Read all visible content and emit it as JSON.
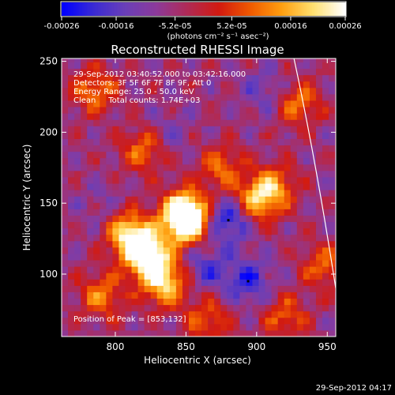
{
  "colorbar": {
    "tick_labels": [
      "-0.00026",
      "-0.00016",
      "-5.2e-05",
      "5.2e-05",
      "0.00016",
      "0.00026"
    ],
    "tick_values": [
      -0.00026,
      -0.00016,
      -5.2e-05,
      5.2e-05,
      0.00016,
      0.00026
    ],
    "range": [
      -0.00026,
      0.00026
    ],
    "units_label": "(photons cm⁻² s⁻¹ asec⁻²)",
    "colors": [
      "#0000ff",
      "#3a2bd4",
      "#6a3fb8",
      "#8c3a9a",
      "#b02a55",
      "#d21a10",
      "#f05a00",
      "#ff9f10",
      "#ffe070",
      "#ffffff"
    ]
  },
  "chart_data": {
    "type": "heatmap",
    "title": "Reconstructed RHESSI Image",
    "xlabel": "Heliocentric X (arcsec)",
    "ylabel": "Heliocentric Y (arcsec)",
    "xlim": [
      762,
      956
    ],
    "ylim": [
      56,
      252
    ],
    "xticks": [
      800,
      850,
      900,
      950
    ],
    "yticks": [
      100,
      150,
      200,
      250
    ],
    "annotations": [
      "29-Sep-2012 03:40:52.000 to 03:42:16.000",
      "Detectors: 3F 5F 6F 7F 8F 9F, Att 0",
      "Energy Range: 25.0 - 50.0 keV",
      "Clean     Total counts: 1.74E+03"
    ],
    "peak_label": "Position of Peak = [853,132]",
    "peak_position": [
      853,
      132
    ],
    "markers": [
      [
        880,
        138
      ],
      [
        894,
        95
      ]
    ],
    "bright_sources": [
      {
        "x": 851,
        "y": 137,
        "value": 0.00026
      },
      {
        "x": 848,
        "y": 144,
        "value": 0.00022
      },
      {
        "x": 818,
        "y": 120,
        "value": 0.00021
      },
      {
        "x": 826,
        "y": 108,
        "value": 0.00019
      },
      {
        "x": 836,
        "y": 92,
        "value": 0.00017
      },
      {
        "x": 808,
        "y": 130,
        "value": 0.00014
      },
      {
        "x": 900,
        "y": 152,
        "value": 0.00016
      },
      {
        "x": 912,
        "y": 162,
        "value": 0.00013
      },
      {
        "x": 820,
        "y": 188,
        "value": 0.00011
      },
      {
        "x": 875,
        "y": 175,
        "value": 0.0001
      },
      {
        "x": 785,
        "y": 230,
        "value": 0.00012
      },
      {
        "x": 930,
        "y": 220,
        "value": 0.00011
      },
      {
        "x": 948,
        "y": 105,
        "value": 0.0001
      },
      {
        "x": 790,
        "y": 85,
        "value": 0.00012
      },
      {
        "x": 865,
        "y": 68,
        "value": 9e-05
      },
      {
        "x": 920,
        "y": 70,
        "value": 9e-05
      }
    ],
    "dark_sources": [
      {
        "x": 880,
        "y": 138,
        "value": -0.00025
      },
      {
        "x": 894,
        "y": 95,
        "value": -0.00022
      },
      {
        "x": 865,
        "y": 105,
        "value": -0.00018
      },
      {
        "x": 905,
        "y": 230,
        "value": -0.00015
      },
      {
        "x": 838,
        "y": 200,
        "value": -0.00012
      },
      {
        "x": 790,
        "y": 150,
        "value": -0.00011
      }
    ],
    "limb": "solar limb arc near right edge"
  },
  "footer": {
    "timestamp": "29-Sep-2012 04:17"
  }
}
